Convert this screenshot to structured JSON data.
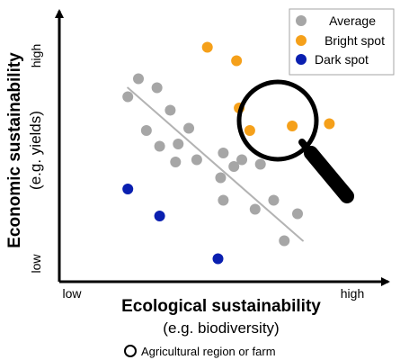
{
  "chart_data": {
    "type": "scatter",
    "title": "",
    "xlabel": "Ecological sustainability",
    "xlabel_sub": "(e.g. biodiversity)",
    "ylabel": "Economic sustainability",
    "ylabel_sub": "(e.g. yields)",
    "x_low_label": "low",
    "x_high_label": "high",
    "y_low_label": "low",
    "y_high_label": "high",
    "xlim": [
      0,
      100
    ],
    "ylim": [
      0,
      100
    ],
    "grid": false,
    "legend_position": "top-right",
    "series": [
      {
        "name": "Average",
        "color": "#a6a6a6",
        "points": [
          {
            "x": 20,
            "y": 81
          },
          {
            "x": 27,
            "y": 77
          },
          {
            "x": 16,
            "y": 73
          },
          {
            "x": 32,
            "y": 67
          },
          {
            "x": 23,
            "y": 58
          },
          {
            "x": 39,
            "y": 59
          },
          {
            "x": 28,
            "y": 51
          },
          {
            "x": 35,
            "y": 52
          },
          {
            "x": 34,
            "y": 44
          },
          {
            "x": 42,
            "y": 45
          },
          {
            "x": 52,
            "y": 48
          },
          {
            "x": 56,
            "y": 42
          },
          {
            "x": 59,
            "y": 45
          },
          {
            "x": 51,
            "y": 37
          },
          {
            "x": 66,
            "y": 43
          },
          {
            "x": 52,
            "y": 27
          },
          {
            "x": 64,
            "y": 23
          },
          {
            "x": 71,
            "y": 27
          },
          {
            "x": 80,
            "y": 21
          },
          {
            "x": 75,
            "y": 9
          }
        ]
      },
      {
        "name": "Bright spot",
        "color": "#f5a01a",
        "points": [
          {
            "x": 46,
            "y": 95
          },
          {
            "x": 57,
            "y": 89
          },
          {
            "x": 58,
            "y": 68
          },
          {
            "x": 62,
            "y": 58
          },
          {
            "x": 78,
            "y": 60
          },
          {
            "x": 92,
            "y": 61
          }
        ]
      },
      {
        "name": "Dark spot",
        "color": "#0a1fb0",
        "points": [
          {
            "x": 16,
            "y": 32
          },
          {
            "x": 28,
            "y": 20
          },
          {
            "x": 50,
            "y": 1
          }
        ]
      }
    ],
    "trend_line": {
      "from": {
        "x": 16,
        "y": 77
      },
      "to": {
        "x": 82,
        "y": 9
      },
      "color": "#b3b3b3"
    },
    "footnote": "Agricultural region or farm"
  }
}
